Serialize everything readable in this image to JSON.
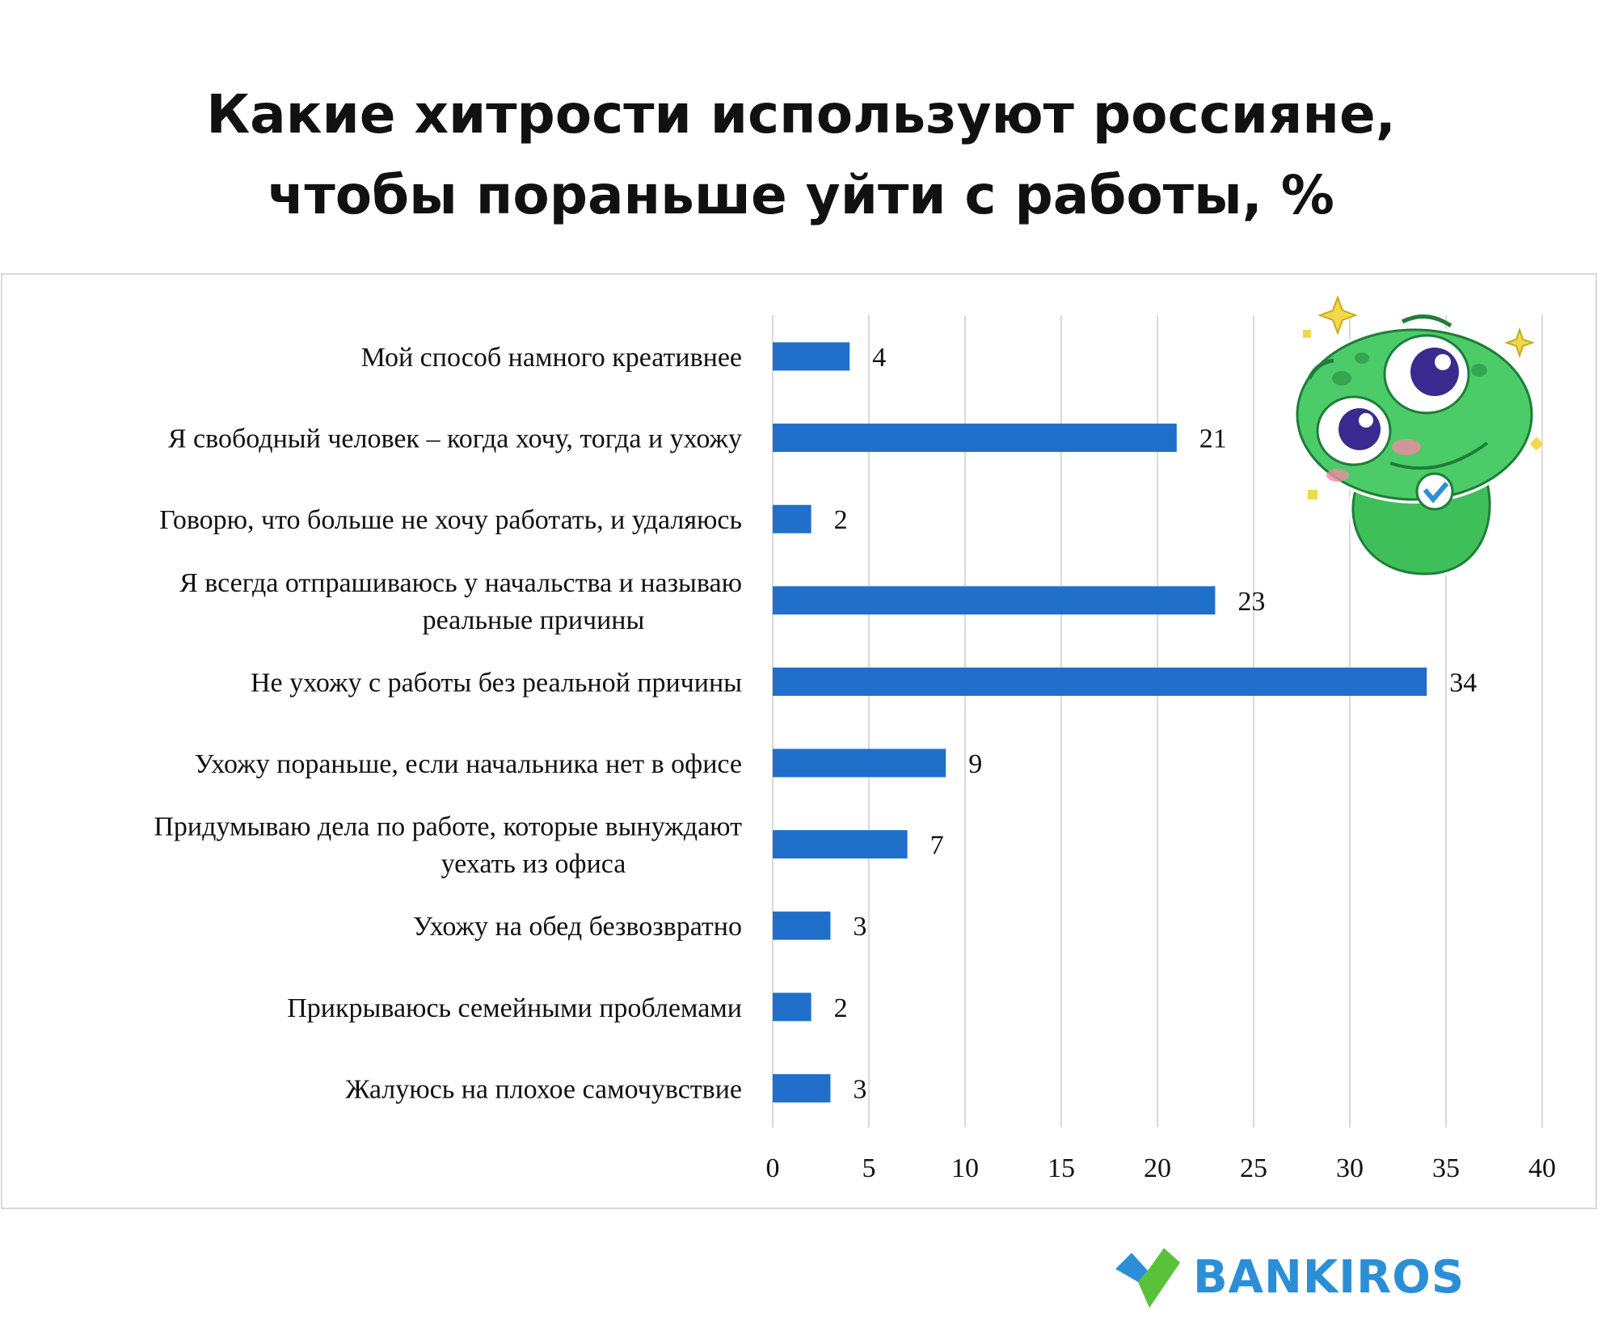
{
  "title_line1": "Какие хитрости используют россияне,",
  "title_line2": "чтобы пораньше уйти с работы, %",
  "brand": {
    "name": "BANKIROS",
    "icon": "bankiros-check-logo-icon"
  },
  "mascot": {
    "icon": "green-frog-mascot-icon"
  },
  "colors": {
    "bar": "#1f6fcb",
    "grid": "#d9d9d9",
    "brand_blue": "#2c8fd6",
    "brand_green": "#5ac13b"
  },
  "chart_data": {
    "type": "bar",
    "orientation": "horizontal",
    "title": "Какие хитрости используют россияне, чтобы пораньше уйти с работы, %",
    "categories": [
      [
        "Мой способ намного креативнее"
      ],
      [
        "Я свободный человек – когда хочу, тогда и ухожу"
      ],
      [
        "Говорю, что больше не хочу работать, и удаляюсь"
      ],
      [
        "Я всегда отпрашиваюсь у начальства и называю",
        "реальные причины"
      ],
      [
        "Не ухожу с работы без реальной причины"
      ],
      [
        "Ухожу пораньше, если начальника нет в офисе"
      ],
      [
        "Придумываю дела по работе, которые вынуждают",
        "уехать из офиса"
      ],
      [
        "Ухожу на обед безвозвратно"
      ],
      [
        "Прикрываюсь семейными проблемами"
      ],
      [
        "Жалуюсь на плохое самочувствие"
      ]
    ],
    "values": [
      4,
      21,
      2,
      23,
      34,
      9,
      7,
      3,
      2,
      3
    ],
    "xlim": [
      0,
      40
    ],
    "xticks": [
      0,
      5,
      10,
      15,
      20,
      25,
      30,
      35,
      40
    ],
    "grid": "vertical",
    "data_labels": true
  }
}
